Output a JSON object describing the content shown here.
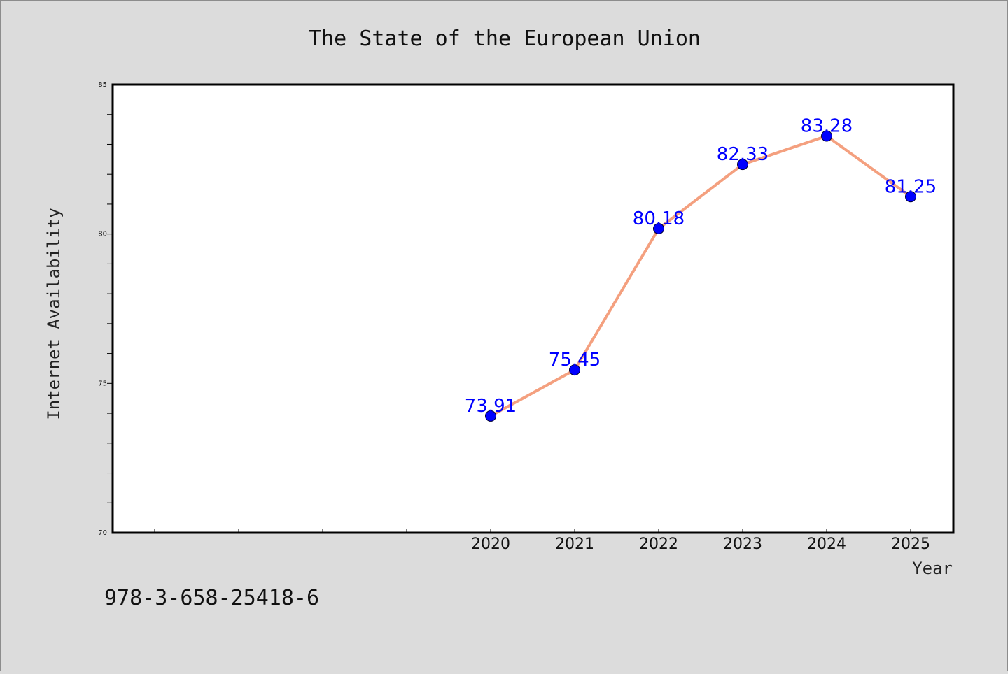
{
  "colors": {
    "background": "#dcdcdc",
    "plot_background": "#ffffff",
    "line": "#f4a07f",
    "marker": "#0000ff",
    "data_label": "#0000ff"
  },
  "footer": {
    "isbn": "978-3-658-25418-6"
  },
  "chart_data": {
    "type": "line",
    "title": "The State of the European Union",
    "xlabel": "Year",
    "ylabel": "Internet Availability",
    "categories": [
      "2020",
      "2021",
      "2022",
      "2023",
      "2024",
      "2025"
    ],
    "values": [
      73.91,
      75.45,
      80.18,
      82.33,
      83.28,
      81.25
    ],
    "data_labels": [
      "73.91",
      "75.45",
      "80.18",
      "82.33",
      "83.28",
      "81.25"
    ],
    "ylim": [
      70,
      85
    ],
    "yticks": [
      "70",
      "75",
      "80",
      "85"
    ],
    "grid": false,
    "legend": "none"
  }
}
